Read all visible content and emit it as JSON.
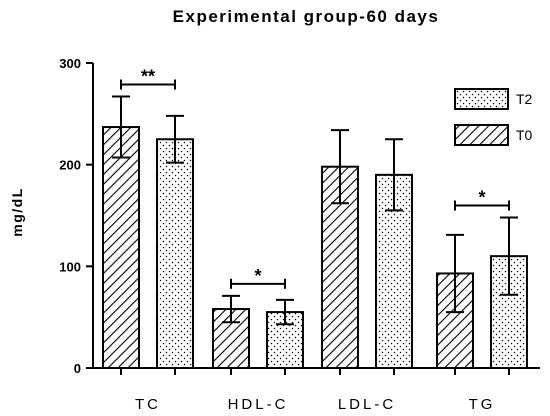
{
  "chart_data": {
    "type": "bar",
    "title": "Experimental group-60 days",
    "ylabel": "mg/dL",
    "xlabel": "",
    "ylim": [
      0,
      300
    ],
    "yticks": [
      "0",
      "100",
      "200",
      "300"
    ],
    "categories": [
      "TC",
      "HDL-C",
      "LDL-C",
      "TG"
    ],
    "series": [
      {
        "name": "T0",
        "pattern": "hatch",
        "values": [
          237,
          58,
          198,
          93
        ],
        "errors": [
          30,
          13,
          36,
          38
        ]
      },
      {
        "name": "T2",
        "pattern": "dots",
        "values": [
          225,
          55,
          190,
          110
        ],
        "errors": [
          23,
          12,
          35,
          38
        ]
      }
    ],
    "significance": [
      {
        "category": "TC",
        "label": "**"
      },
      {
        "category": "HDL-C",
        "label": "*"
      },
      {
        "category": "TG",
        "label": "*"
      }
    ],
    "legend": {
      "position": "top-right",
      "order": [
        "T2",
        "T0"
      ]
    },
    "grid": false
  },
  "colors": {
    "stroke": "#000000",
    "fill": "#ffffff"
  }
}
